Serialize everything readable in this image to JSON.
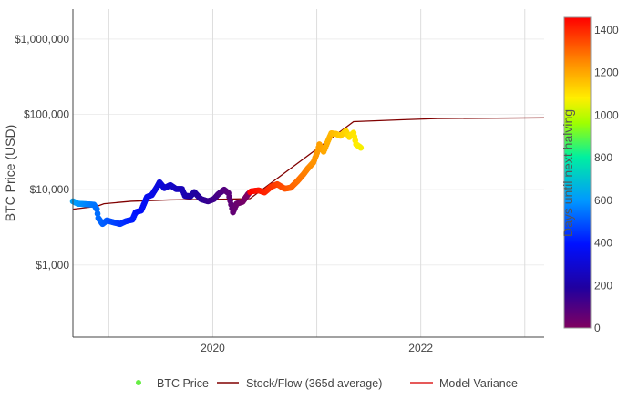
{
  "chart_data": {
    "type": "scatter",
    "ylabel": "BTC Price (USD)",
    "xlabel": "",
    "y_scale": "log",
    "ylim": [
      110,
      2500000
    ],
    "xlim": [
      "2018-08-28",
      "2023-03-10"
    ],
    "y_ticks": [
      {
        "v": 1000,
        "label": "$1,000"
      },
      {
        "v": 10000,
        "label": "$10,000"
      },
      {
        "v": 100000,
        "label": "$100,000"
      },
      {
        "v": 1000000,
        "label": "$1,000,000"
      }
    ],
    "x_ticks": [
      {
        "date": "2019-01-01",
        "label": ""
      },
      {
        "date": "2020-01-01",
        "label": "2020"
      },
      {
        "date": "2021-01-01",
        "label": ""
      },
      {
        "date": "2022-01-01",
        "label": "2022"
      },
      {
        "date": "2023-01-01",
        "label": ""
      }
    ],
    "grid": true,
    "legend_placement": "bottom",
    "colorbar": {
      "title": "Days until next halving",
      "range": [
        0,
        1460
      ],
      "ticks": [
        0,
        200,
        400,
        600,
        800,
        1000,
        1200,
        1400
      ],
      "colorscale": [
        [
          0,
          "#800060"
        ],
        [
          0.13,
          "#2000a0"
        ],
        [
          0.27,
          "#0010ff"
        ],
        [
          0.41,
          "#0098ff"
        ],
        [
          0.55,
          "#00f0a0"
        ],
        [
          0.66,
          "#a0ff00"
        ],
        [
          0.74,
          "#ffee00"
        ],
        [
          0.85,
          "#ff9000"
        ],
        [
          1,
          "#ff0000"
        ]
      ]
    },
    "halvings": [
      "2020-05-11",
      "2024-05-10"
    ],
    "series": [
      {
        "name": "BTC Price",
        "kind": "markers",
        "legend_color": "#66ee44",
        "points": [
          [
            "2018-08-28",
            7000
          ],
          [
            "2018-09-15",
            6500
          ],
          [
            "2018-10-15",
            6400
          ],
          [
            "2018-11-10",
            6300
          ],
          [
            "2018-11-20",
            5500
          ],
          [
            "2018-11-25",
            4200
          ],
          [
            "2018-12-10",
            3500
          ],
          [
            "2018-12-25",
            3900
          ],
          [
            "2019-01-15",
            3700
          ],
          [
            "2019-02-10",
            3500
          ],
          [
            "2019-03-01",
            3800
          ],
          [
            "2019-03-25",
            4000
          ],
          [
            "2019-04-05",
            5000
          ],
          [
            "2019-04-25",
            5300
          ],
          [
            "2019-05-15",
            8000
          ],
          [
            "2019-06-01",
            8500
          ],
          [
            "2019-06-20",
            11000
          ],
          [
            "2019-06-28",
            12500
          ],
          [
            "2019-07-15",
            10500
          ],
          [
            "2019-08-05",
            11500
          ],
          [
            "2019-08-25",
            10200
          ],
          [
            "2019-09-15",
            10200
          ],
          [
            "2019-09-25",
            8300
          ],
          [
            "2019-10-15",
            8200
          ],
          [
            "2019-10-28",
            9300
          ],
          [
            "2019-11-20",
            7500
          ],
          [
            "2019-12-15",
            7000
          ],
          [
            "2020-01-05",
            7500
          ],
          [
            "2020-01-20",
            8700
          ],
          [
            "2020-02-10",
            10000
          ],
          [
            "2020-02-25",
            9000
          ],
          [
            "2020-03-12",
            5000
          ],
          [
            "2020-03-25",
            6500
          ],
          [
            "2020-04-15",
            6900
          ],
          [
            "2020-05-05",
            8800
          ],
          [
            "2020-05-15",
            9500
          ],
          [
            "2020-06-10",
            9800
          ],
          [
            "2020-07-01",
            9200
          ],
          [
            "2020-07-25",
            11000
          ],
          [
            "2020-08-15",
            11800
          ],
          [
            "2020-09-10",
            10300
          ],
          [
            "2020-10-01",
            10600
          ],
          [
            "2020-10-25",
            13000
          ],
          [
            "2020-11-15",
            16000
          ],
          [
            "2020-11-30",
            19000
          ],
          [
            "2020-12-20",
            23000
          ],
          [
            "2021-01-05",
            33000
          ],
          [
            "2021-01-10",
            40000
          ],
          [
            "2021-01-25",
            32000
          ],
          [
            "2021-02-10",
            45000
          ],
          [
            "2021-02-21",
            56000
          ],
          [
            "2021-03-10",
            55000
          ],
          [
            "2021-03-25",
            52000
          ],
          [
            "2021-04-13",
            60000
          ],
          [
            "2021-04-25",
            50000
          ],
          [
            "2021-05-10",
            57000
          ],
          [
            "2021-05-19",
            40000
          ],
          [
            "2021-06-01",
            37000
          ],
          [
            "2021-06-08",
            35000
          ]
        ]
      },
      {
        "name": "Stock/Flow (365d average)",
        "kind": "line",
        "color": "#800000",
        "points": [
          [
            "2018-08-28",
            5500
          ],
          [
            "2018-11-20",
            6000
          ],
          [
            "2018-12-15",
            6500
          ],
          [
            "2019-03-20",
            7000
          ],
          [
            "2019-08-01",
            7300
          ],
          [
            "2020-03-01",
            7500
          ],
          [
            "2020-05-11",
            7600
          ],
          [
            "2021-05-10",
            80000
          ],
          [
            "2021-11-01",
            85000
          ],
          [
            "2022-03-01",
            88000
          ],
          [
            "2023-03-10",
            90000
          ]
        ]
      },
      {
        "name": "Model Variance",
        "kind": "line",
        "color": "#dd2222",
        "points": []
      }
    ]
  }
}
